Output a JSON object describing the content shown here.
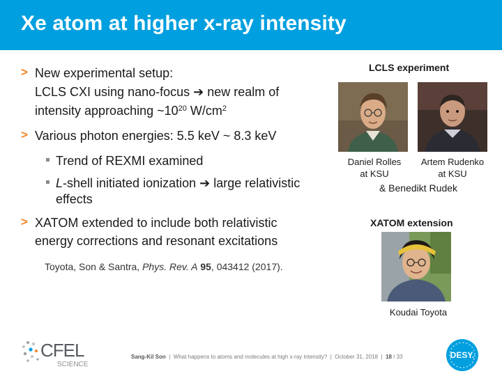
{
  "slide": {
    "title": "Xe atom at higher x-ray intensity",
    "bullets": {
      "b1_line1": "New experimental setup:",
      "b1_line2": "LCLS CXI using nano-focus ",
      "b1_arrow": "➔",
      "b1_line2b": " new realm of",
      "b1_line3a": "intensity approaching ~10",
      "b1_line3_sup": "20",
      "b1_line3b": " W/cm",
      "b1_line3_sup2": "2",
      "b2": "Various photon energies: 5.5 keV ~ 8.3 keV",
      "sub1": "Trend of REXMI examined",
      "sub2_italic": "L",
      "sub2_line1": "-shell initiated ionization ",
      "sub2_arrow": "➔",
      "sub2_line1b": " large relativistic",
      "sub2_line2": "effects",
      "b3_line1": "XATOM extended to include both relativistic",
      "b3_line2": "energy corrections and resonant excitations"
    },
    "citation": {
      "authors": "Toyota, Son & Santra, ",
      "journal": "Phys. Rev. A",
      "volume": "95",
      "rest": ", 043412 (2017)."
    },
    "right": {
      "lcls_heading": "LCLS experiment",
      "person1_line1": "Daniel Rolles",
      "person1_line2": "at KSU",
      "person2_line1": "Artem Rudenko",
      "person2_line2": "at KSU",
      "extra": "& Benedikt Rudek",
      "xatom_heading": "XATOM extension",
      "person3": "Koudai Toyota"
    },
    "footer": {
      "author": "Sang-Kil Son",
      "talk": "What happens to atoms and molecules at high x-ray intensity?",
      "date": "October 31, 2018",
      "page": "18",
      "total": "33"
    },
    "logos": {
      "cfel_name": "CFEL",
      "cfel_sub": "SCIENCE",
      "desy_name": "DESY."
    },
    "colors": {
      "title_bar": "#009fdf",
      "bullet_marker": "#f58220"
    }
  }
}
